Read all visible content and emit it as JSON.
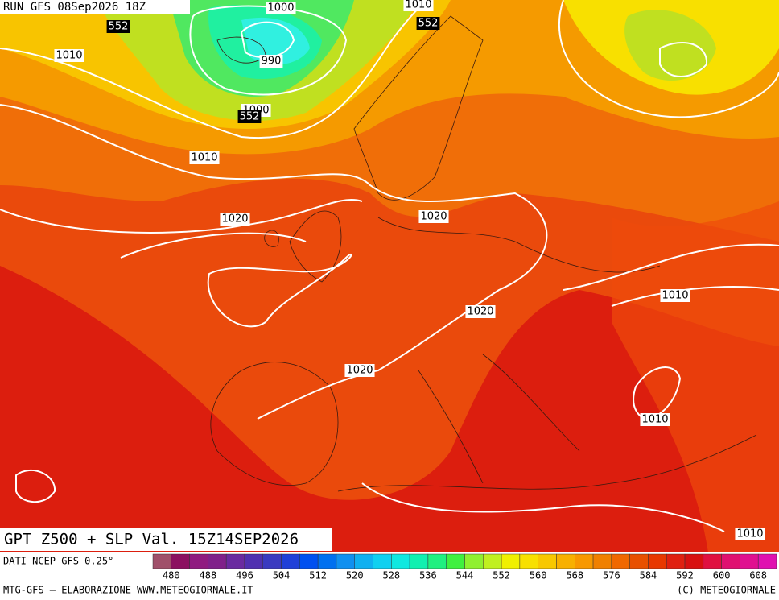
{
  "header": {
    "run": "RUN GFS 08Sep2026 18Z"
  },
  "map": {
    "title": "GPT Z500 + SLP Val. 15Z14SEP2026",
    "contour_labels": [
      "1000",
      "1010",
      "552",
      "1010",
      "990",
      "1000",
      "552",
      "552",
      "1010",
      "1020",
      "1020",
      "1020",
      "1010",
      "1020",
      "1010",
      "1010"
    ]
  },
  "colorbar": {
    "range": [
      476,
      612
    ],
    "ticks": [
      480,
      488,
      496,
      504,
      512,
      520,
      528,
      536,
      544,
      552,
      560,
      568,
      576,
      584,
      592,
      600,
      608
    ],
    "colors": [
      "#a0506a",
      "#8c1060",
      "#901a80",
      "#80208a",
      "#6a2aa0",
      "#5030b0",
      "#3a3ac0",
      "#2040d8",
      "#0050f0",
      "#0070f0",
      "#1090f0",
      "#10b0f0",
      "#10d0f0",
      "#10e8e0",
      "#10f0b0",
      "#20f080",
      "#40f040",
      "#90f030",
      "#c0f020",
      "#f0f000",
      "#f8e000",
      "#f8c800",
      "#f8b000",
      "#f89800",
      "#f08000",
      "#f06800",
      "#e85000",
      "#e83800",
      "#e02010",
      "#d81010",
      "#e01040",
      "#e01070",
      "#e01090",
      "#e010b0"
    ]
  },
  "footer": {
    "source": "DATI NCEP GFS 0.25°",
    "credit_left": "MTG-GFS — ELABORAZIONE WWW.METEOGIORNALE.IT",
    "credit_right": "(C) METEOGIORNALE"
  }
}
